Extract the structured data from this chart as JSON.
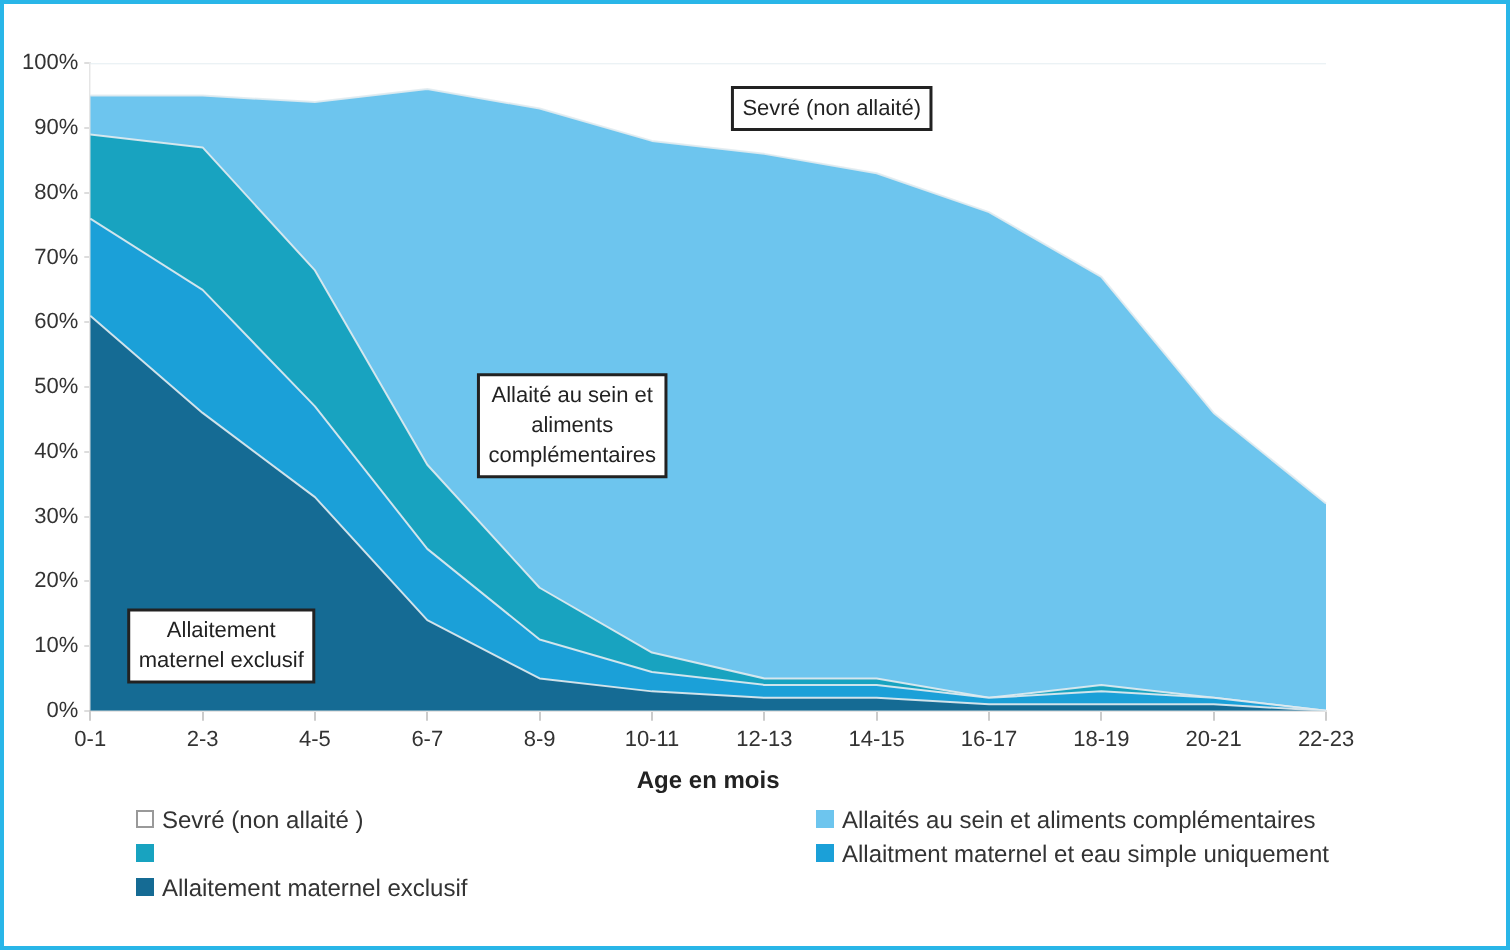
{
  "chart_data": {
    "type": "area",
    "stacked": true,
    "xlabel": "Age en mois",
    "categories": [
      "0-1",
      "2-3",
      "4-5",
      "6-7",
      "8-9",
      "10-11",
      "12-13",
      "14-15",
      "16-17",
      "18-19",
      "20-21",
      "22-23"
    ],
    "series": [
      {
        "name": "Allaitement maternel exclusif",
        "color": "#156b94",
        "values": [
          61,
          46,
          33,
          14,
          5,
          3,
          2,
          2,
          1,
          1,
          1,
          0
        ]
      },
      {
        "name": "Allaitment maternel et eau simple uniquement",
        "color": "#1ba0d8",
        "values": [
          15,
          19,
          14,
          11,
          6,
          3,
          2,
          2,
          1,
          2,
          1,
          0
        ]
      },
      {
        "color": "#18a3c0",
        "values": [
          13,
          22,
          21,
          13,
          8,
          3,
          1,
          1,
          0,
          1,
          0,
          0
        ]
      },
      {
        "name": "Allaités au sein et aliments complémentaires",
        "color": "#6dc5ee",
        "values": [
          6,
          8,
          26,
          58,
          74,
          79,
          81,
          78,
          75,
          63,
          44,
          32
        ]
      },
      {
        "name": "Sevré (non allaité )",
        "color": "#ffffff",
        "values": [
          5,
          5,
          6,
          4,
          7,
          12,
          14,
          17,
          23,
          33,
          54,
          68
        ]
      }
    ],
    "ylim": [
      0,
      100
    ],
    "yticks": [
      {
        "value": 0,
        "label": "0%"
      },
      {
        "value": 10,
        "label": "10%"
      },
      {
        "value": 20,
        "label": "20%"
      },
      {
        "value": 30,
        "label": "30%"
      },
      {
        "value": 40,
        "label": "40%"
      },
      {
        "value": 50,
        "label": "50%"
      },
      {
        "value": 60,
        "label": "60%"
      },
      {
        "value": 70,
        "label": "70%"
      },
      {
        "value": 80,
        "label": "80%"
      },
      {
        "value": 90,
        "label": "90%"
      },
      {
        "value": 100,
        "label": "100%"
      }
    ],
    "grid": false,
    "legend": "bottom",
    "marker": "none",
    "annotations": [
      "Allaitement maternel exclusif",
      "Allaité au sein et aliments complémentaires",
      "Sevré (non allaité)"
    ]
  }
}
